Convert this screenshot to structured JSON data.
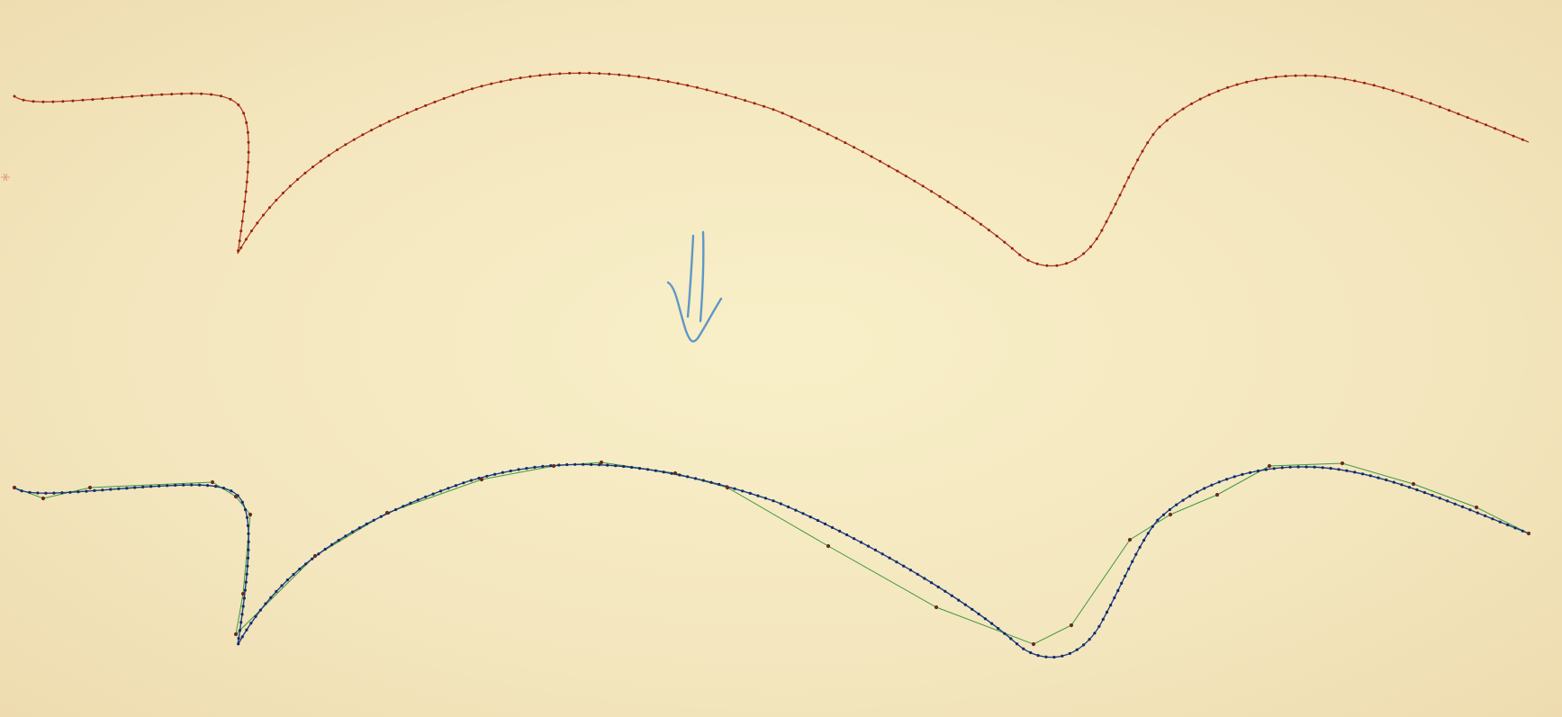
{
  "colors": {
    "background": "#f6ebc4",
    "input_curve": "#b73a22",
    "fitted_curve": "#1f3f86",
    "control_polygon": "#3f9a3f",
    "arrow": "#5f97c7",
    "edge_marker": "#e9a27e"
  },
  "icons": {
    "transform_arrow": "down-arrow-icon",
    "edge_marker": "small-cross-icon"
  },
  "curve_shape": "sketch stroke with a cusp on the left, a broad arch, a valley and a second rise on the right",
  "panels": [
    {
      "role": "input-sampled-curve",
      "style": "red polyline with dense sample points"
    },
    {
      "role": "fitted-spline-curve",
      "style": "blue curve with sample points and green control polygon"
    }
  ]
}
